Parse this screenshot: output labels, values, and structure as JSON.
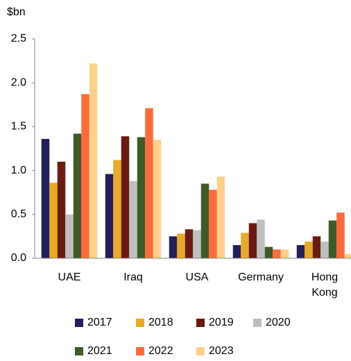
{
  "chart_data": {
    "type": "bar",
    "y_label": "$bn",
    "categories": [
      "UAE",
      "Iraq",
      "USA",
      "Germany",
      "Hong Kong"
    ],
    "series": [
      {
        "name": "2017",
        "color": "#231f5c",
        "values": [
          1.36,
          0.96,
          0.25,
          0.15,
          0.15
        ]
      },
      {
        "name": "2018",
        "color": "#e6a92a",
        "values": [
          0.86,
          1.12,
          0.28,
          0.29,
          0.19
        ]
      },
      {
        "name": "2019",
        "color": "#6b1a0f",
        "values": [
          1.1,
          1.39,
          0.33,
          0.4,
          0.25
        ]
      },
      {
        "name": "2020",
        "color": "#bfbfbf",
        "values": [
          0.5,
          0.88,
          0.32,
          0.44,
          0.19
        ]
      },
      {
        "name": "2021",
        "color": "#3e5a28",
        "values": [
          1.42,
          1.38,
          0.85,
          0.13,
          0.43
        ]
      },
      {
        "name": "2022",
        "color": "#ff6a3d",
        "values": [
          1.87,
          1.71,
          0.78,
          0.1,
          0.52
        ]
      },
      {
        "name": "2023",
        "color": "#ffd08a",
        "values": [
          2.22,
          1.35,
          0.93,
          0.1,
          0.05
        ]
      }
    ],
    "ylim": [
      0,
      2.5
    ],
    "yticks": [
      {
        "value": 0,
        "label": "0.0"
      },
      0.5,
      {
        "value": 1,
        "label": "1.0"
      },
      1.5,
      {
        "value": 2,
        "label": "2.0"
      },
      2.5
    ]
  }
}
